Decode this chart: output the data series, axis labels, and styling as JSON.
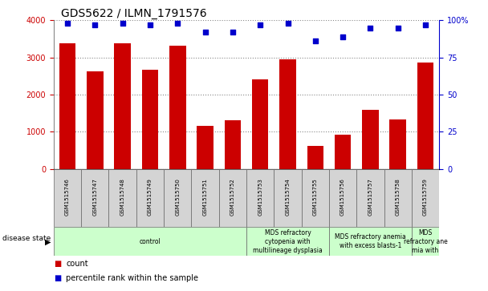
{
  "title": "GDS5622 / ILMN_1791576",
  "samples": [
    "GSM1515746",
    "GSM1515747",
    "GSM1515748",
    "GSM1515749",
    "GSM1515750",
    "GSM1515751",
    "GSM1515752",
    "GSM1515753",
    "GSM1515754",
    "GSM1515755",
    "GSM1515756",
    "GSM1515757",
    "GSM1515758",
    "GSM1515759"
  ],
  "counts": [
    3380,
    2620,
    3380,
    2680,
    3310,
    1150,
    1310,
    2420,
    2960,
    620,
    910,
    1590,
    1340,
    2870
  ],
  "percentile_ranks": [
    98,
    97,
    98,
    97,
    98,
    92,
    92,
    97,
    98,
    86,
    89,
    95,
    95,
    97
  ],
  "bar_color": "#cc0000",
  "dot_color": "#0000cc",
  "ylim_left": [
    0,
    4000
  ],
  "ylim_right": [
    0,
    100
  ],
  "yticks_left": [
    0,
    1000,
    2000,
    3000,
    4000
  ],
  "yticks_right": [
    0,
    25,
    50,
    75,
    100
  ],
  "ytick_labels_right": [
    "0",
    "25",
    "50",
    "75",
    "100%"
  ],
  "disease_groups": [
    {
      "label": "control",
      "start": 0,
      "end": 6
    },
    {
      "label": "MDS refractory\ncytopenia with\nmultilineage dysplasia",
      "start": 7,
      "end": 9
    },
    {
      "label": "MDS refractory anemia\nwith excess blasts-1",
      "start": 10,
      "end": 12
    },
    {
      "label": "MDS\nrefractory ane\nmia with",
      "start": 13,
      "end": 13
    }
  ],
  "disease_state_label": "disease state",
  "legend_count_label": "count",
  "legend_percentile_label": "percentile rank within the sample",
  "grid_color": "#888888",
  "tick_label_color_left": "#cc0000",
  "tick_label_color_right": "#0000cc",
  "sample_box_color": "#d4d4d4",
  "disease_box_color": "#ccffcc",
  "plot_bg": "#ffffff",
  "title_fontsize": 10,
  "axis_fontsize": 7,
  "sample_fontsize": 5,
  "disease_fontsize": 5.5,
  "legend_fontsize": 7
}
